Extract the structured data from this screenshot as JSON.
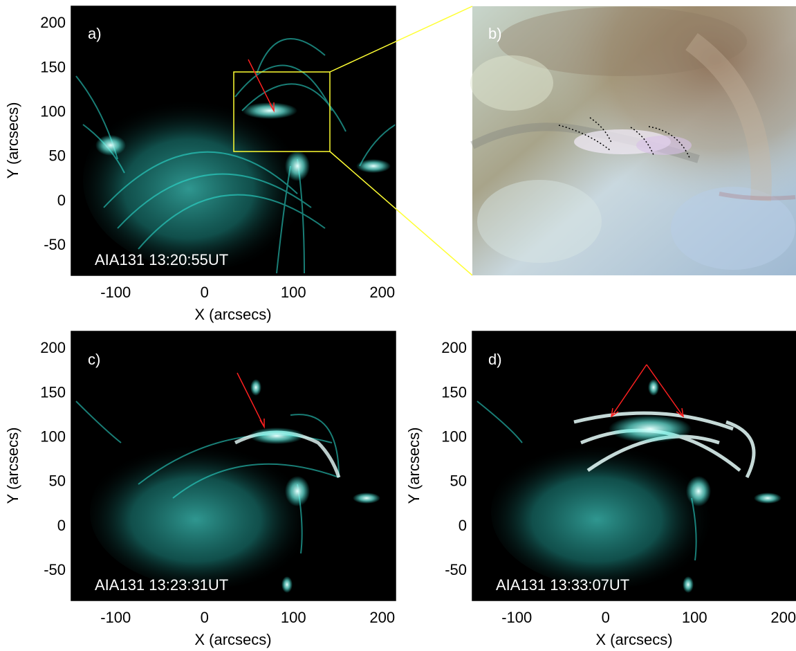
{
  "figure": {
    "panels": [
      {
        "id": "a",
        "letter": "a)",
        "time_label": "AIA131 13:20:55UT",
        "x_title": "X (arcsecs)",
        "y_title": "Y (arcsecs)"
      },
      {
        "id": "b",
        "letter": "b)"
      },
      {
        "id": "c",
        "letter": "c)",
        "time_label": "AIA131 13:23:31UT",
        "x_title": "X (arcsecs)",
        "y_title": "Y (arcsecs)"
      },
      {
        "id": "d",
        "letter": "d)",
        "time_label": "AIA131 13:33:07UT",
        "x_title": "X (arcsecs)",
        "y_title": "Y (arcsecs)"
      }
    ],
    "x_ticks": [
      "-100",
      "0",
      "100",
      "200"
    ],
    "y_ticks": [
      "200",
      "150",
      "100",
      "50",
      "0",
      "-50"
    ],
    "x_range": [
      -150,
      215
    ],
    "y_range": [
      -85,
      218
    ],
    "zoom_box": {
      "x_range": [
        36,
        144
      ],
      "y_range": [
        54,
        144
      ]
    },
    "colors": {
      "emission": "#2ee6d8",
      "arrow": "#ff2020",
      "box": "#ffff33",
      "dotted": "#000000"
    }
  }
}
